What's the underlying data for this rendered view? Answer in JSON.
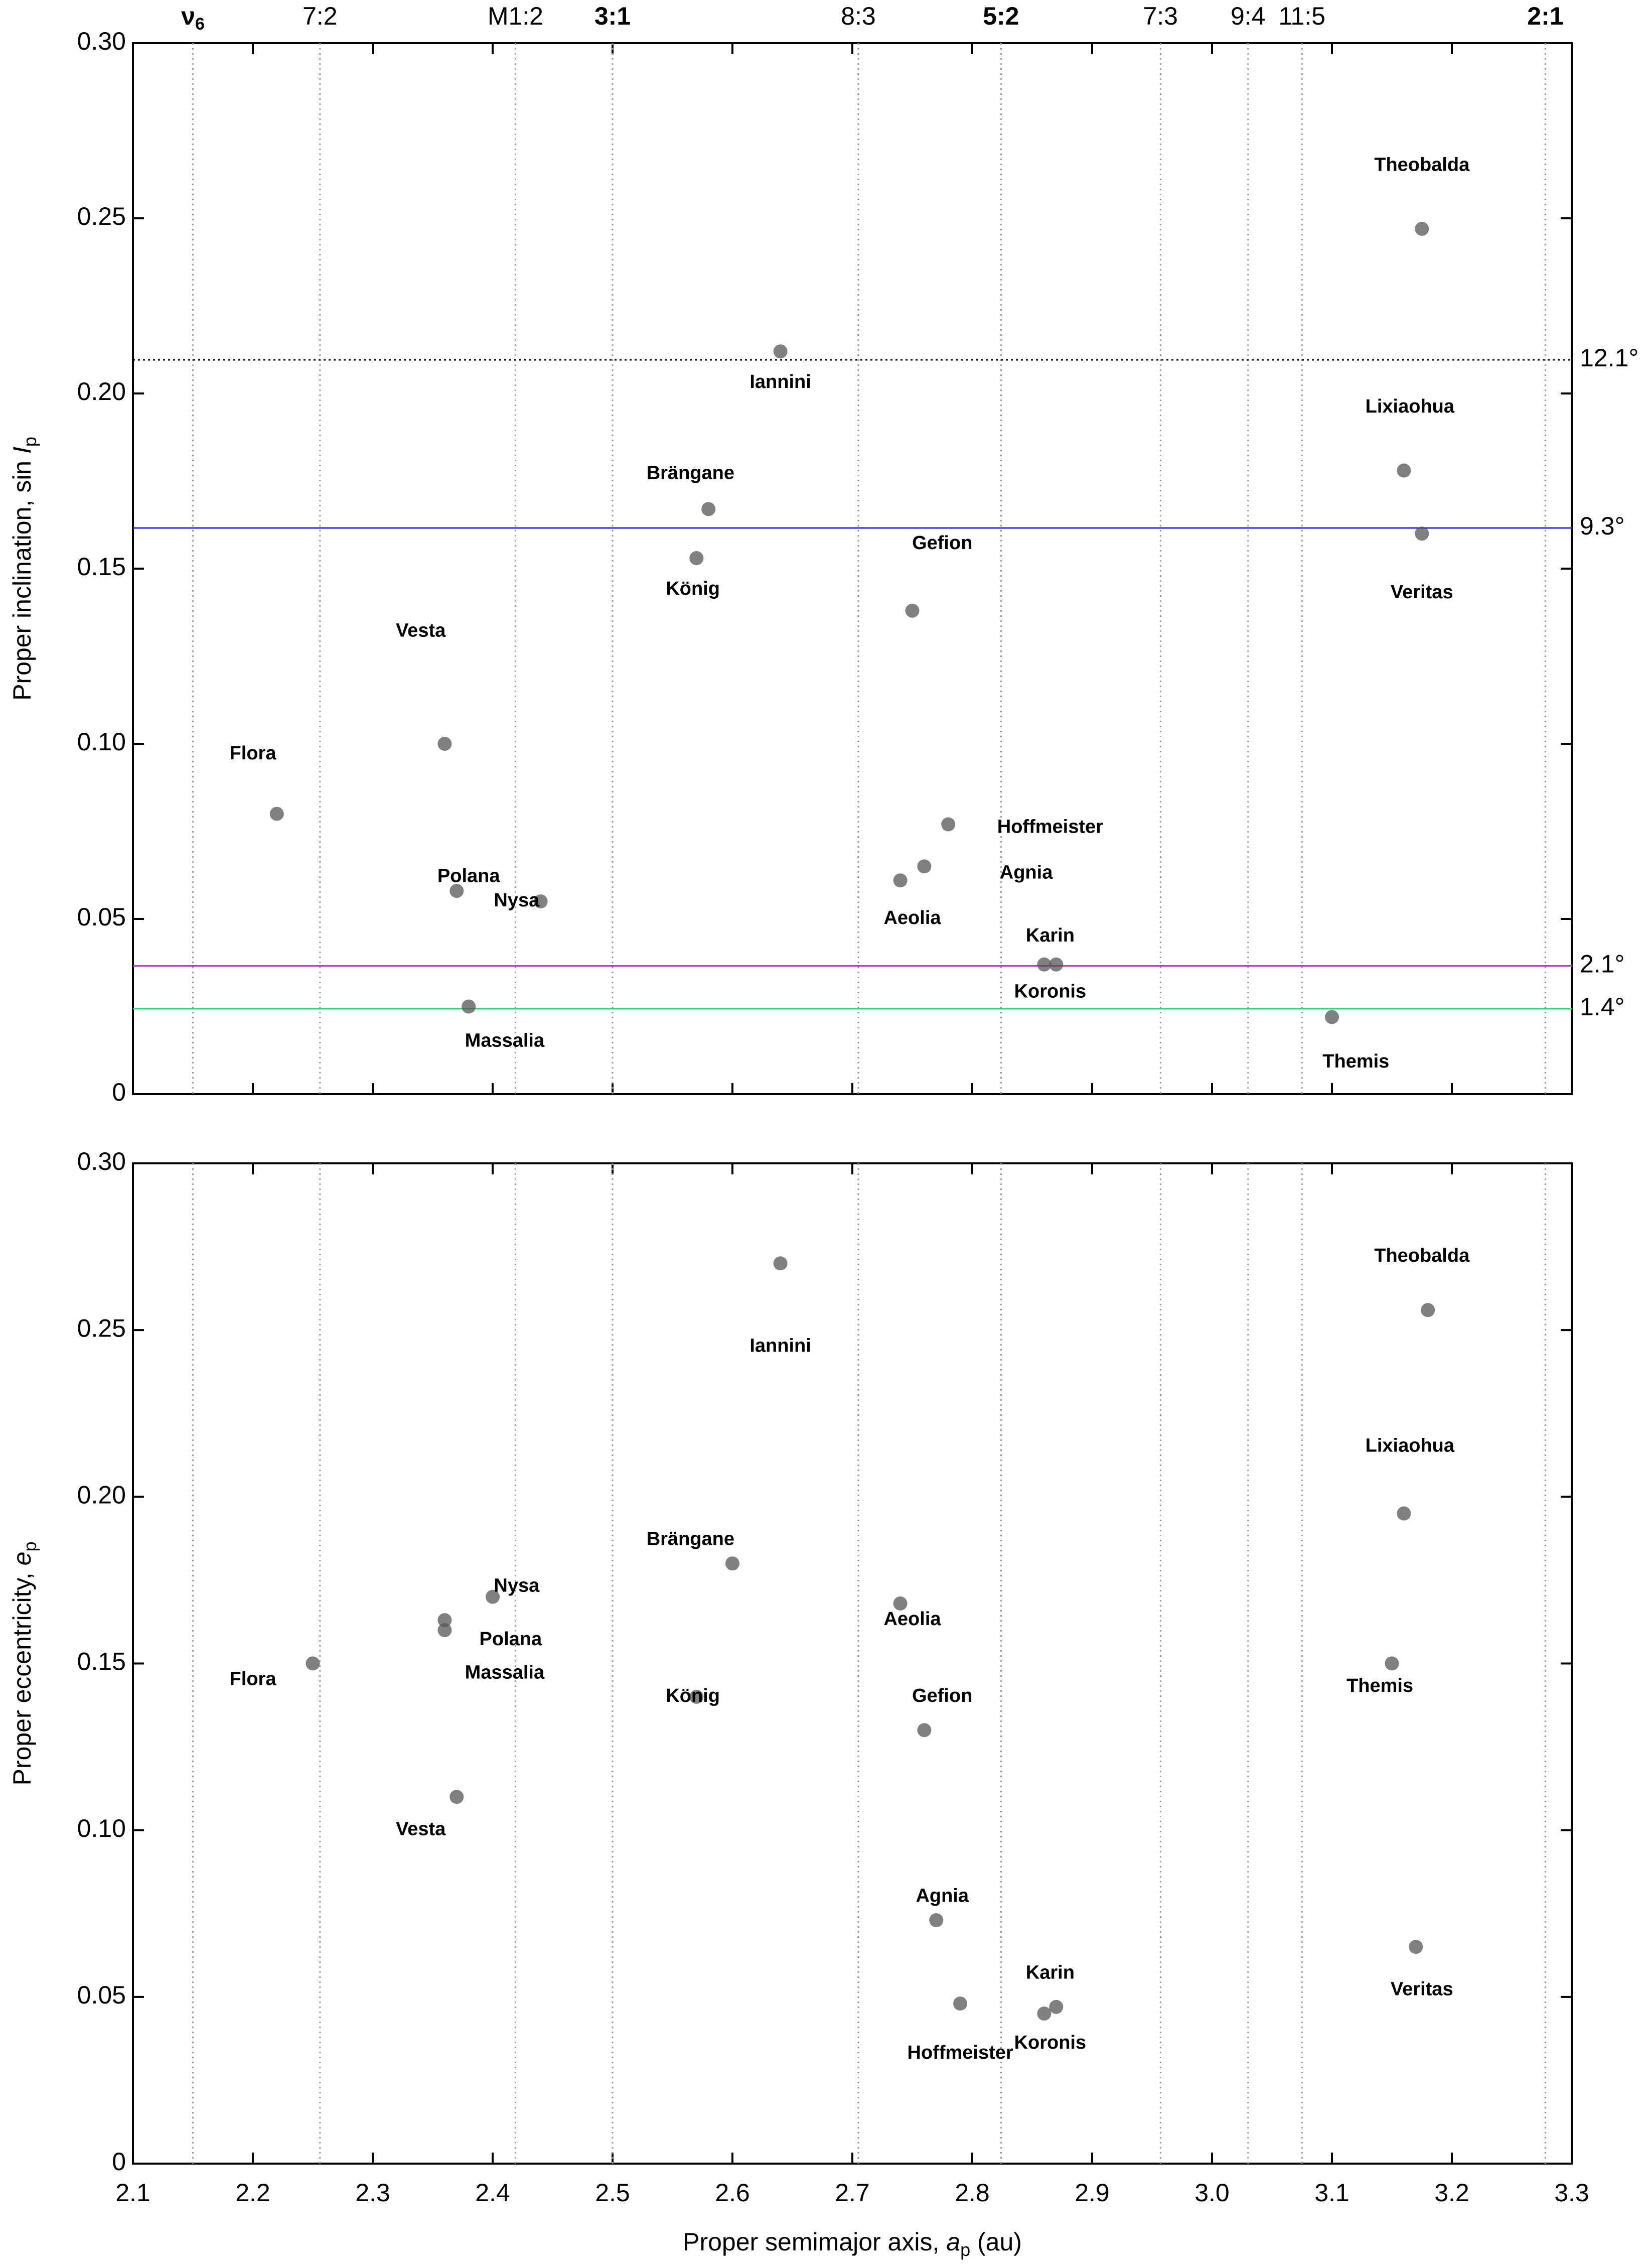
{
  "chart_data": [
    {
      "type": "scatter",
      "ylabel": "Proper inclination, sin ",
      "ylabel_var": "I",
      "ylabel_sub": "p",
      "xlim": [
        2.1,
        3.3
      ],
      "xticks": [
        2.1,
        2.2,
        2.3,
        2.4,
        2.5,
        2.6,
        2.7,
        2.8,
        2.9,
        {
          "value": 3.0,
          "label": "3.0"
        },
        3.1,
        3.2,
        3.3
      ],
      "ylim": [
        0,
        0.3
      ],
      "yticks": [
        0,
        0.05,
        {
          "value": 0.1,
          "label": "0.10"
        },
        0.15,
        {
          "value": 0.2,
          "label": "0.20"
        },
        0.25,
        {
          "value": 0.3,
          "label": "0.30"
        }
      ],
      "resonances": [
        {
          "label": "ν",
          "sub": "6",
          "a": 2.15,
          "bold": true
        },
        {
          "label": "7:2",
          "a": 2.256,
          "bold": false
        },
        {
          "label": "M1:2",
          "a": 2.419,
          "bold": false
        },
        {
          "label": "3:1",
          "a": 2.5,
          "bold": true
        },
        {
          "label": "8:3",
          "a": 2.705,
          "bold": false
        },
        {
          "label": "5:2",
          "a": 2.824,
          "bold": true
        },
        {
          "label": "7:3",
          "a": 2.957,
          "bold": false
        },
        {
          "label": "9:4",
          "a": 3.03,
          "bold": false
        },
        {
          "label": "11:5",
          "a": 3.075,
          "bold": false
        },
        {
          "label": "2:1",
          "a": 3.278,
          "bold": true
        }
      ],
      "hlines": [
        {
          "value": 0.2096,
          "label": "12.1°",
          "color": "#000000",
          "dashed": true
        },
        {
          "value": 0.1616,
          "label": "9.3°",
          "color": "#2233cc",
          "dashed": false
        },
        {
          "value": 0.0366,
          "label": "2.1°",
          "color": "#dd22dd",
          "dashed": false
        },
        {
          "value": 0.0244,
          "label": "1.4°",
          "color": "#22dd77",
          "dashed": false
        }
      ],
      "points": {
        "color": "#555555",
        "x": [
          3.175,
          2.64,
          3.16,
          2.58,
          2.75,
          3.175,
          2.57,
          2.36,
          2.22,
          2.78,
          2.76,
          2.37,
          2.44,
          2.74,
          2.86,
          2.87,
          2.38,
          3.1
        ],
        "y": [
          0.247,
          0.212,
          0.178,
          0.167,
          0.138,
          0.16,
          0.153,
          0.1,
          0.08,
          0.077,
          0.065,
          0.058,
          0.055,
          0.061,
          0.037,
          0.037,
          0.025,
          0.022
        ]
      },
      "annotations": [
        {
          "text": "Theobalda",
          "x": 3.175,
          "y": 0.265,
          "color": "#6a6aee"
        },
        {
          "text": "Iannini",
          "x": 2.64,
          "y": 0.203,
          "color": "#6a6aee"
        },
        {
          "text": "Lixiaohua",
          "x": 3.165,
          "y": 0.196,
          "color": "#6a6aee"
        },
        {
          "text": "Brängane",
          "x": 2.565,
          "y": 0.177,
          "color": "#6a6aee"
        },
        {
          "text": "Gefion",
          "x": 2.775,
          "y": 0.157,
          "color": "#c8c800"
        },
        {
          "text": "Veritas",
          "x": 3.175,
          "y": 0.143,
          "color": "#00008b"
        },
        {
          "text": "König",
          "x": 2.567,
          "y": 0.144,
          "color": "#6a6aee"
        },
        {
          "text": "Vesta",
          "x": 2.34,
          "y": 0.132,
          "color": "#ffc000"
        },
        {
          "text": "Flora",
          "x": 2.2,
          "y": 0.097,
          "color": "#ff6600"
        },
        {
          "text": "Hoffmeister",
          "x": 2.865,
          "y": 0.076,
          "color": "#6a6aee"
        },
        {
          "text": "Agnia",
          "x": 2.845,
          "y": 0.063,
          "color": "#000000"
        },
        {
          "text": "Polana",
          "x": 2.38,
          "y": 0.062,
          "color": "#6a6aee"
        },
        {
          "text": "Nysa",
          "x": 2.42,
          "y": 0.055,
          "color": "#a00000"
        },
        {
          "text": "Aeolia",
          "x": 2.75,
          "y": 0.05,
          "color": "#6a6aee"
        },
        {
          "text": "Karin",
          "x": 2.865,
          "y": 0.045,
          "color": "#ffaad4"
        },
        {
          "text": "Koronis",
          "x": 2.865,
          "y": 0.029,
          "color": "#e000e0"
        },
        {
          "text": "Massalia",
          "x": 2.41,
          "y": 0.015,
          "color": "#22dd77"
        },
        {
          "text": "Themis",
          "x": 3.12,
          "y": 0.009,
          "color": "#6a6aee"
        }
      ]
    },
    {
      "type": "scatter",
      "ylabel": "Proper eccentricity, ",
      "ylabel_var": "e",
      "ylabel_sub": "p",
      "xlabel": "Proper semimajor axis, ",
      "xlabel_var": "a",
      "xlabel_sub": "p",
      "xlabel_unit": " (au)",
      "xlim": [
        2.1,
        3.3
      ],
      "xticks": [
        2.1,
        2.2,
        2.3,
        2.4,
        2.5,
        2.6,
        2.7,
        2.8,
        2.9,
        {
          "value": 3.0,
          "label": "3.0"
        },
        3.1,
        3.2,
        3.3
      ],
      "ylim": [
        0,
        0.3
      ],
      "yticks": [
        0,
        0.05,
        {
          "value": 0.1,
          "label": "0.10"
        },
        0.15,
        {
          "value": 0.2,
          "label": "0.20"
        },
        0.25,
        {
          "value": 0.3,
          "label": "0.30"
        }
      ],
      "points": {
        "color": "#555555",
        "x": [
          3.18,
          2.64,
          3.16,
          2.6,
          2.4,
          2.74,
          2.36,
          2.36,
          2.25,
          3.15,
          2.57,
          2.76,
          2.37,
          2.77,
          2.87,
          3.17,
          2.86,
          2.79
        ],
        "y": [
          0.256,
          0.27,
          0.195,
          0.18,
          0.17,
          0.168,
          0.16,
          0.163,
          0.15,
          0.15,
          0.14,
          0.13,
          0.11,
          0.073,
          0.047,
          0.065,
          0.045,
          0.048
        ]
      },
      "annotations": [
        {
          "text": "Theobalda",
          "x": 3.175,
          "y": 0.272,
          "color": "#6a6aee"
        },
        {
          "text": "Iannini",
          "x": 2.64,
          "y": 0.245,
          "color": "#6a6aee"
        },
        {
          "text": "Lixiaohua",
          "x": 3.165,
          "y": 0.215,
          "color": "#6a6aee"
        },
        {
          "text": "Brängane",
          "x": 2.565,
          "y": 0.187,
          "color": "#6a6aee"
        },
        {
          "text": "Nysa",
          "x": 2.42,
          "y": 0.173,
          "color": "#a00000"
        },
        {
          "text": "Aeolia",
          "x": 2.75,
          "y": 0.163,
          "color": "#6a6aee"
        },
        {
          "text": "Polana",
          "x": 2.415,
          "y": 0.157,
          "color": "#6a6aee"
        },
        {
          "text": "Massalia",
          "x": 2.41,
          "y": 0.147,
          "color": "#22dd77"
        },
        {
          "text": "Flora",
          "x": 2.2,
          "y": 0.145,
          "color": "#ff6600"
        },
        {
          "text": "Themis",
          "x": 3.14,
          "y": 0.143,
          "color": "#6a6aee"
        },
        {
          "text": "König",
          "x": 2.567,
          "y": 0.14,
          "color": "#6a6aee"
        },
        {
          "text": "Gefion",
          "x": 2.775,
          "y": 0.14,
          "color": "#c8c800"
        },
        {
          "text": "Vesta",
          "x": 2.34,
          "y": 0.1,
          "color": "#ffc000"
        },
        {
          "text": "Agnia",
          "x": 2.775,
          "y": 0.08,
          "color": "#000000"
        },
        {
          "text": "Karin",
          "x": 2.865,
          "y": 0.057,
          "color": "#ffaad4"
        },
        {
          "text": "Veritas",
          "x": 3.175,
          "y": 0.052,
          "color": "#00008b"
        },
        {
          "text": "Koronis",
          "x": 2.865,
          "y": 0.036,
          "color": "#e000e0"
        },
        {
          "text": "Hoffmeister",
          "x": 2.79,
          "y": 0.033,
          "color": "#6a6aee"
        }
      ]
    }
  ]
}
